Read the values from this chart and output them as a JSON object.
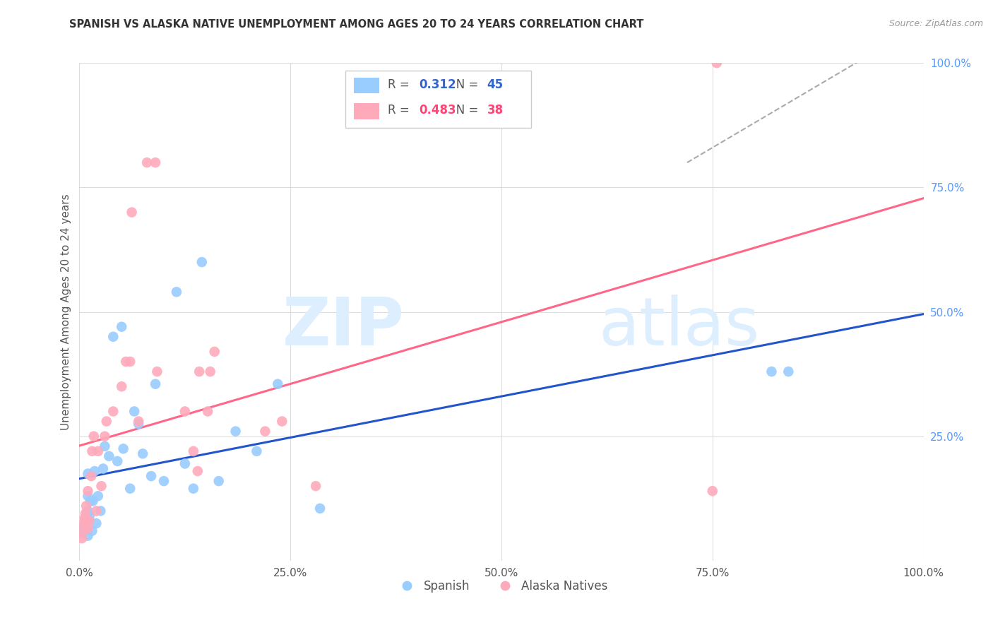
{
  "title": "SPANISH VS ALASKA NATIVE UNEMPLOYMENT AMONG AGES 20 TO 24 YEARS CORRELATION CHART",
  "source": "Source: ZipAtlas.com",
  "ylabel": "Unemployment Among Ages 20 to 24 years",
  "xlim": [
    0,
    1
  ],
  "ylim": [
    0,
    1
  ],
  "xticks": [
    0.0,
    0.25,
    0.5,
    0.75,
    1.0
  ],
  "yticks": [
    0.0,
    0.25,
    0.5,
    0.75,
    1.0
  ],
  "xticklabels": [
    "0.0%",
    "25.0%",
    "50.0%",
    "75.0%",
    "100.0%"
  ],
  "yticklabels": [
    "",
    "25.0%",
    "50.0%",
    "75.0%",
    "100.0%"
  ],
  "spanish_color": "#99ccff",
  "alaska_color": "#ffaabb",
  "trend_spanish_color": "#2255cc",
  "trend_alaska_color": "#ff6688",
  "trend_dashed_color": "#aaaaaa",
  "spanish_R": 0.312,
  "spanish_N": 45,
  "alaska_R": 0.483,
  "alaska_N": 38,
  "spanish_x": [
    0.003,
    0.004,
    0.005,
    0.006,
    0.007,
    0.008,
    0.009,
    0.01,
    0.01,
    0.01,
    0.01,
    0.01,
    0.012,
    0.013,
    0.015,
    0.016,
    0.018,
    0.02,
    0.022,
    0.025,
    0.028,
    0.03,
    0.035,
    0.04,
    0.045,
    0.05,
    0.052,
    0.06,
    0.065,
    0.07,
    0.075,
    0.085,
    0.09,
    0.1,
    0.115,
    0.125,
    0.135,
    0.145,
    0.165,
    0.185,
    0.21,
    0.235,
    0.285,
    0.82,
    0.84
  ],
  "spanish_y": [
    0.055,
    0.06,
    0.065,
    0.07,
    0.075,
    0.085,
    0.095,
    0.05,
    0.08,
    0.1,
    0.13,
    0.175,
    0.09,
    0.12,
    0.06,
    0.12,
    0.18,
    0.075,
    0.13,
    0.1,
    0.185,
    0.23,
    0.21,
    0.45,
    0.2,
    0.47,
    0.225,
    0.145,
    0.3,
    0.275,
    0.215,
    0.17,
    0.355,
    0.16,
    0.54,
    0.195,
    0.145,
    0.6,
    0.16,
    0.26,
    0.22,
    0.355,
    0.105,
    0.38,
    0.38
  ],
  "alaska_x": [
    0.003,
    0.004,
    0.005,
    0.006,
    0.007,
    0.008,
    0.01,
    0.01,
    0.012,
    0.014,
    0.015,
    0.017,
    0.02,
    0.022,
    0.026,
    0.03,
    0.032,
    0.04,
    0.05,
    0.055,
    0.06,
    0.062,
    0.07,
    0.08,
    0.09,
    0.092,
    0.125,
    0.135,
    0.14,
    0.142,
    0.152,
    0.155,
    0.16,
    0.22,
    0.24,
    0.28,
    0.75,
    0.755
  ],
  "alaska_y": [
    0.045,
    0.06,
    0.075,
    0.085,
    0.095,
    0.11,
    0.065,
    0.14,
    0.08,
    0.17,
    0.22,
    0.25,
    0.1,
    0.22,
    0.15,
    0.25,
    0.28,
    0.3,
    0.35,
    0.4,
    0.4,
    0.7,
    0.28,
    0.8,
    0.8,
    0.38,
    0.3,
    0.22,
    0.18,
    0.38,
    0.3,
    0.38,
    0.42,
    0.26,
    0.28,
    0.15,
    0.14,
    1.0
  ],
  "watermark_zip_color": "#ddeeff",
  "watermark_atlas_color": "#ddeeff",
  "background_color": "#ffffff",
  "grid_color": "#dddddd",
  "title_color": "#333333",
  "axis_color": "#555555",
  "right_axis_color": "#5599ff",
  "legend_box_color": "#cccccc",
  "legend_r_color_spanish": "#3366cc",
  "legend_r_color_alaska": "#ff4477",
  "legend_n_color_spanish": "#3366cc",
  "legend_n_color_alaska": "#ff4477"
}
